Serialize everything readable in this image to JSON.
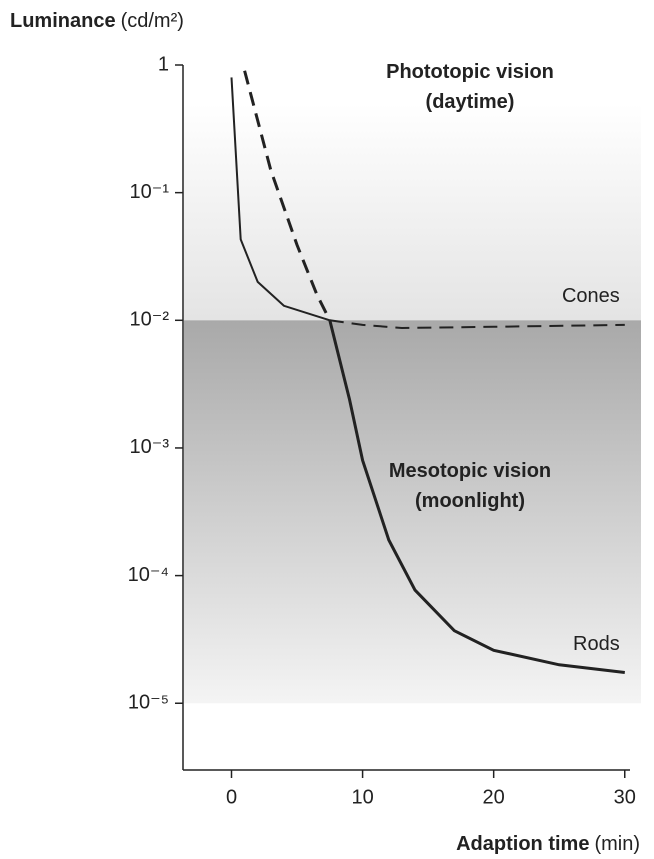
{
  "chart_data": {
    "type": "line",
    "y_label": "Luminance",
    "y_unit": "(cd/m²)",
    "x_label": "Adaption time",
    "x_unit": "(min)",
    "xlim": [
      -3.7,
      30.4
    ],
    "xticks": [
      0,
      10,
      20,
      30
    ],
    "ylim": [
      3e-06,
      1
    ],
    "log_y": true,
    "yticks": [
      1,
      {
        "value": 0.1,
        "label": "10⁻¹"
      },
      {
        "value": 0.01,
        "label": "10⁻²"
      },
      {
        "value": 0.001,
        "label": "10⁻³"
      },
      {
        "value": 0.0001,
        "label": "10⁻⁴"
      },
      {
        "value": 1e-05,
        "label": "10⁻⁵"
      }
    ],
    "regions": [
      {
        "label": [
          "Phototopic vision",
          "(daytime)"
        ],
        "ymin": 0.01,
        "ymax": 1
      },
      {
        "label": [
          "Mesotopic vision",
          "(moonlight)"
        ],
        "ymin": 1e-05,
        "ymax": 0.01
      }
    ],
    "series": [
      {
        "name": "Cones",
        "color": "#222222",
        "dash_from": 7.5,
        "x": [
          0,
          0.7,
          2,
          4,
          7.5,
          10,
          13,
          20,
          30
        ],
        "values": [
          0.8,
          0.043,
          0.02,
          0.013,
          0.01,
          0.0092,
          0.0087,
          0.0089,
          0.0092
        ]
      },
      {
        "name": "Rods",
        "color": "#222222",
        "dash_until": 7.5,
        "x": [
          1,
          3,
          5,
          6.5,
          7.5,
          9,
          10,
          12,
          14,
          17,
          20,
          25,
          30
        ],
        "values": [
          0.9,
          0.15,
          0.039,
          0.016,
          0.01,
          0.0024,
          0.0008,
          0.00019,
          7.7e-05,
          3.7e-05,
          2.6e-05,
          2e-05,
          1.74e-05
        ]
      }
    ]
  }
}
